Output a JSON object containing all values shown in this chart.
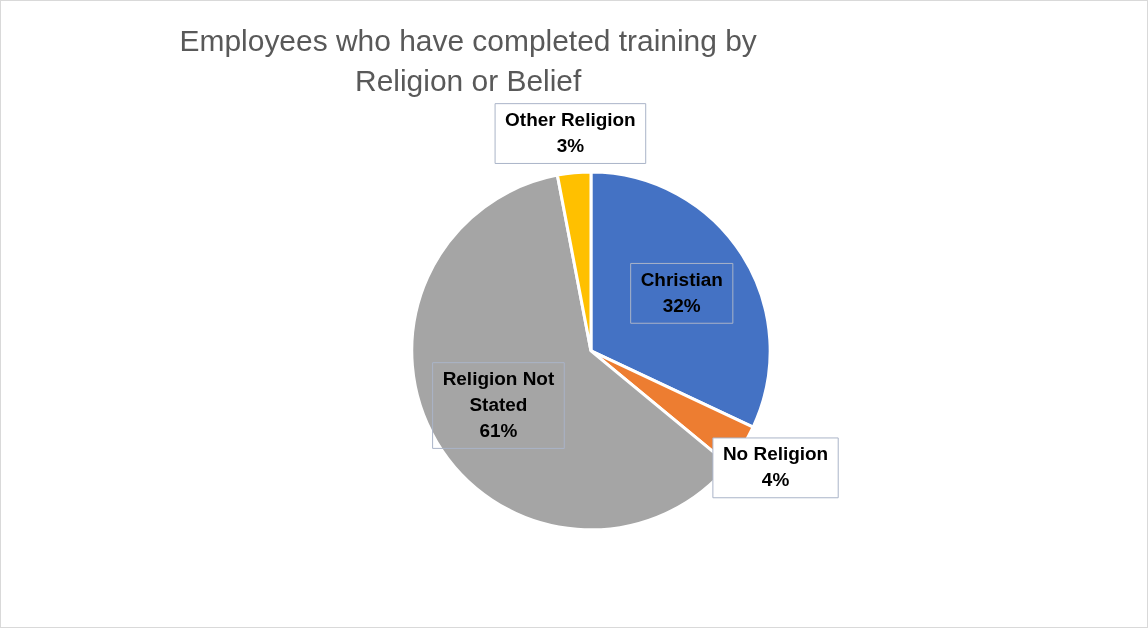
{
  "chart_data": {
    "type": "pie",
    "title": "Employees who have completed training by Religion or Belief",
    "categories": [
      "Christian",
      "No Religion",
      "Religion Not Stated",
      "Other Religion"
    ],
    "values": [
      32,
      4,
      61,
      3
    ],
    "colors": [
      "#4472c4",
      "#ed7d31",
      "#a5a5a5",
      "#ffc000"
    ],
    "value_labels": [
      "32%",
      "4%",
      "61%",
      "3%"
    ],
    "legend": false
  }
}
